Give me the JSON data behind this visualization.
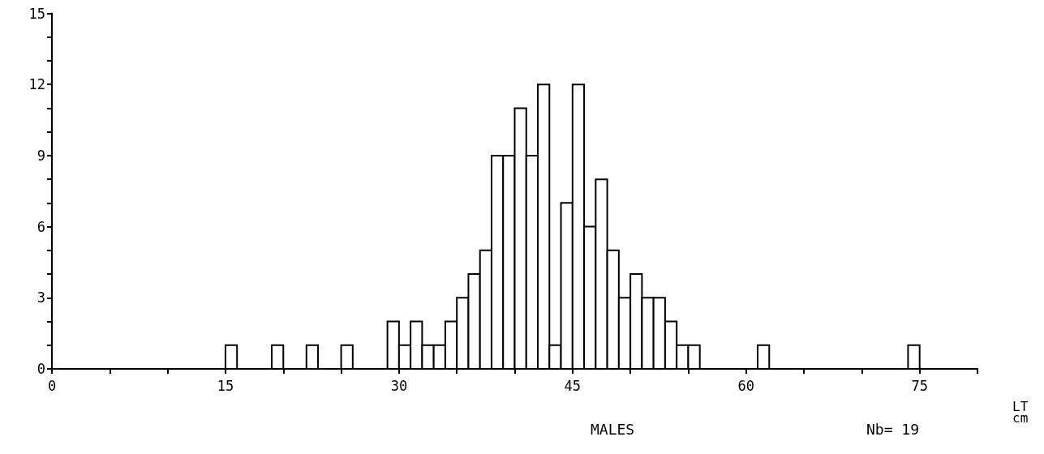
{
  "chart_data": {
    "type": "histogram",
    "title": "MALES",
    "xlabel": "LT\ncm",
    "annotations": [
      "Nb= 19"
    ],
    "bins": [
      15,
      16,
      17,
      18,
      19,
      20,
      21,
      22,
      23,
      24,
      25,
      26,
      27,
      28,
      29,
      30,
      31,
      32,
      33,
      34,
      35,
      36,
      37,
      38,
      39,
      40,
      41,
      42,
      43,
      44,
      45,
      46,
      47,
      48,
      49,
      50,
      51,
      52,
      53,
      54,
      55,
      56,
      57,
      58,
      59,
      60,
      61,
      62,
      63,
      64,
      65,
      66,
      67,
      68,
      69,
      70,
      71,
      72,
      73,
      74,
      75
    ],
    "values": [
      1,
      0,
      0,
      0,
      1,
      0,
      0,
      1,
      0,
      0,
      1,
      0,
      0,
      0,
      2,
      1,
      2,
      1,
      1,
      2,
      3,
      4,
      5,
      9,
      9,
      11,
      9,
      12,
      1,
      7,
      12,
      6,
      8,
      5,
      3,
      4,
      3,
      3,
      2,
      1,
      1,
      0,
      0,
      0,
      0,
      0,
      1,
      0,
      0,
      0,
      0,
      0,
      0,
      0,
      0,
      0,
      0,
      0,
      0,
      1
    ],
    "color": "#ffffff",
    "xlim": [
      0,
      80
    ],
    "xticks": [
      0,
      {
        "value": 5,
        "label": null
      },
      {
        "value": 10,
        "label": null
      },
      15,
      {
        "value": 20,
        "label": null
      },
      {
        "value": 25,
        "label": null
      },
      30,
      {
        "value": 35,
        "label": null
      },
      {
        "value": 40,
        "label": null
      },
      45,
      {
        "value": 50,
        "label": null
      },
      {
        "value": 55,
        "label": null
      },
      60,
      {
        "value": 65,
        "label": null
      },
      {
        "value": 70,
        "label": null
      },
      75,
      {
        "value": 80,
        "label": null
      }
    ],
    "ylim": [
      0,
      15
    ],
    "yticks": [
      0,
      {
        "value": 1,
        "label": null
      },
      {
        "value": 2,
        "label": null
      },
      3,
      {
        "value": 4,
        "label": null
      },
      {
        "value": 5,
        "label": null
      },
      6,
      {
        "value": 7,
        "label": null
      },
      {
        "value": 8,
        "label": null
      },
      9,
      {
        "value": 10,
        "label": null
      },
      {
        "value": 11,
        "label": null
      },
      12,
      {
        "value": 13,
        "label": null
      },
      {
        "value": 14,
        "label": null
      },
      15
    ],
    "grid": false
  }
}
